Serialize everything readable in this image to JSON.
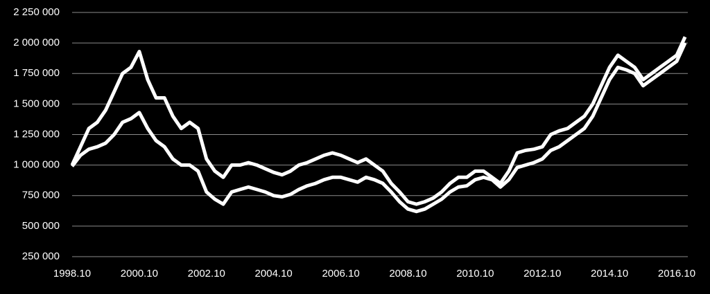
{
  "chart_data": {
    "type": "line",
    "categories": [
      "1998.10",
      null,
      null,
      null,
      null,
      null,
      null,
      null,
      "2000.10",
      null,
      null,
      null,
      null,
      null,
      null,
      null,
      "2002.10",
      null,
      null,
      null,
      null,
      null,
      null,
      null,
      "2004.10",
      null,
      null,
      null,
      null,
      null,
      null,
      null,
      "2006.10",
      null,
      null,
      null,
      null,
      null,
      null,
      null,
      "2008.10",
      null,
      null,
      null,
      null,
      null,
      null,
      null,
      "2010.10",
      null,
      null,
      null,
      null,
      null,
      null,
      null,
      "2012.10",
      null,
      null,
      null,
      null,
      null,
      null,
      null,
      "2014.10",
      null,
      null,
      null,
      null,
      null,
      null,
      null,
      "2016.10",
      null
    ],
    "series": [
      {
        "color": "#ffffff",
        "values": [
          1000000,
          1150000,
          1300000,
          1350000,
          1450000,
          1600000,
          1750000,
          1800000,
          1930000,
          1700000,
          1550000,
          1550000,
          1400000,
          1300000,
          1350000,
          1300000,
          1050000,
          950000,
          900000,
          1000000,
          1000000,
          1020000,
          1000000,
          970000,
          940000,
          920000,
          950000,
          1000000,
          1020000,
          1050000,
          1080000,
          1100000,
          1080000,
          1050000,
          1020000,
          1050000,
          1000000,
          950000,
          850000,
          780000,
          700000,
          680000,
          700000,
          730000,
          780000,
          850000,
          900000,
          900000,
          950000,
          950000,
          900000,
          850000,
          950000,
          1100000,
          1120000,
          1130000,
          1150000,
          1250000,
          1280000,
          1300000,
          1350000,
          1400000,
          1500000,
          1650000,
          1800000,
          1900000,
          1850000,
          1800000,
          1700000,
          1750000,
          1800000,
          1850000,
          1900000,
          2050000
        ]
      },
      {
        "color": "#ffffff",
        "values": [
          990000,
          1080000,
          1130000,
          1150000,
          1180000,
          1250000,
          1350000,
          1380000,
          1430000,
          1300000,
          1200000,
          1150000,
          1050000,
          1000000,
          1000000,
          950000,
          780000,
          720000,
          680000,
          780000,
          800000,
          820000,
          800000,
          780000,
          750000,
          740000,
          760000,
          800000,
          830000,
          850000,
          880000,
          900000,
          900000,
          880000,
          860000,
          900000,
          880000,
          850000,
          780000,
          700000,
          640000,
          620000,
          640000,
          680000,
          720000,
          780000,
          820000,
          830000,
          880000,
          900000,
          880000,
          820000,
          880000,
          980000,
          1000000,
          1020000,
          1050000,
          1120000,
          1150000,
          1200000,
          1250000,
          1300000,
          1400000,
          1550000,
          1700000,
          1800000,
          1780000,
          1750000,
          1650000,
          1700000,
          1750000,
          1800000,
          1850000,
          2000000
        ]
      }
    ],
    "ylim": [
      250000,
      2250000
    ],
    "yticks": [
      {
        "value": 250000,
        "label": "250 000"
      },
      {
        "value": 500000,
        "label": "500 000"
      },
      {
        "value": 750000,
        "label": "750 000"
      },
      {
        "value": 1000000,
        "label": "1 000 000"
      },
      {
        "value": 1250000,
        "label": "1 250 000"
      },
      {
        "value": 1500000,
        "label": "1 500 000"
      },
      {
        "value": 1750000,
        "label": "1 750 000"
      },
      {
        "value": 2000000,
        "label": "2 000 000"
      },
      {
        "value": 2250000,
        "label": "2 250 000"
      }
    ],
    "grid": true
  }
}
